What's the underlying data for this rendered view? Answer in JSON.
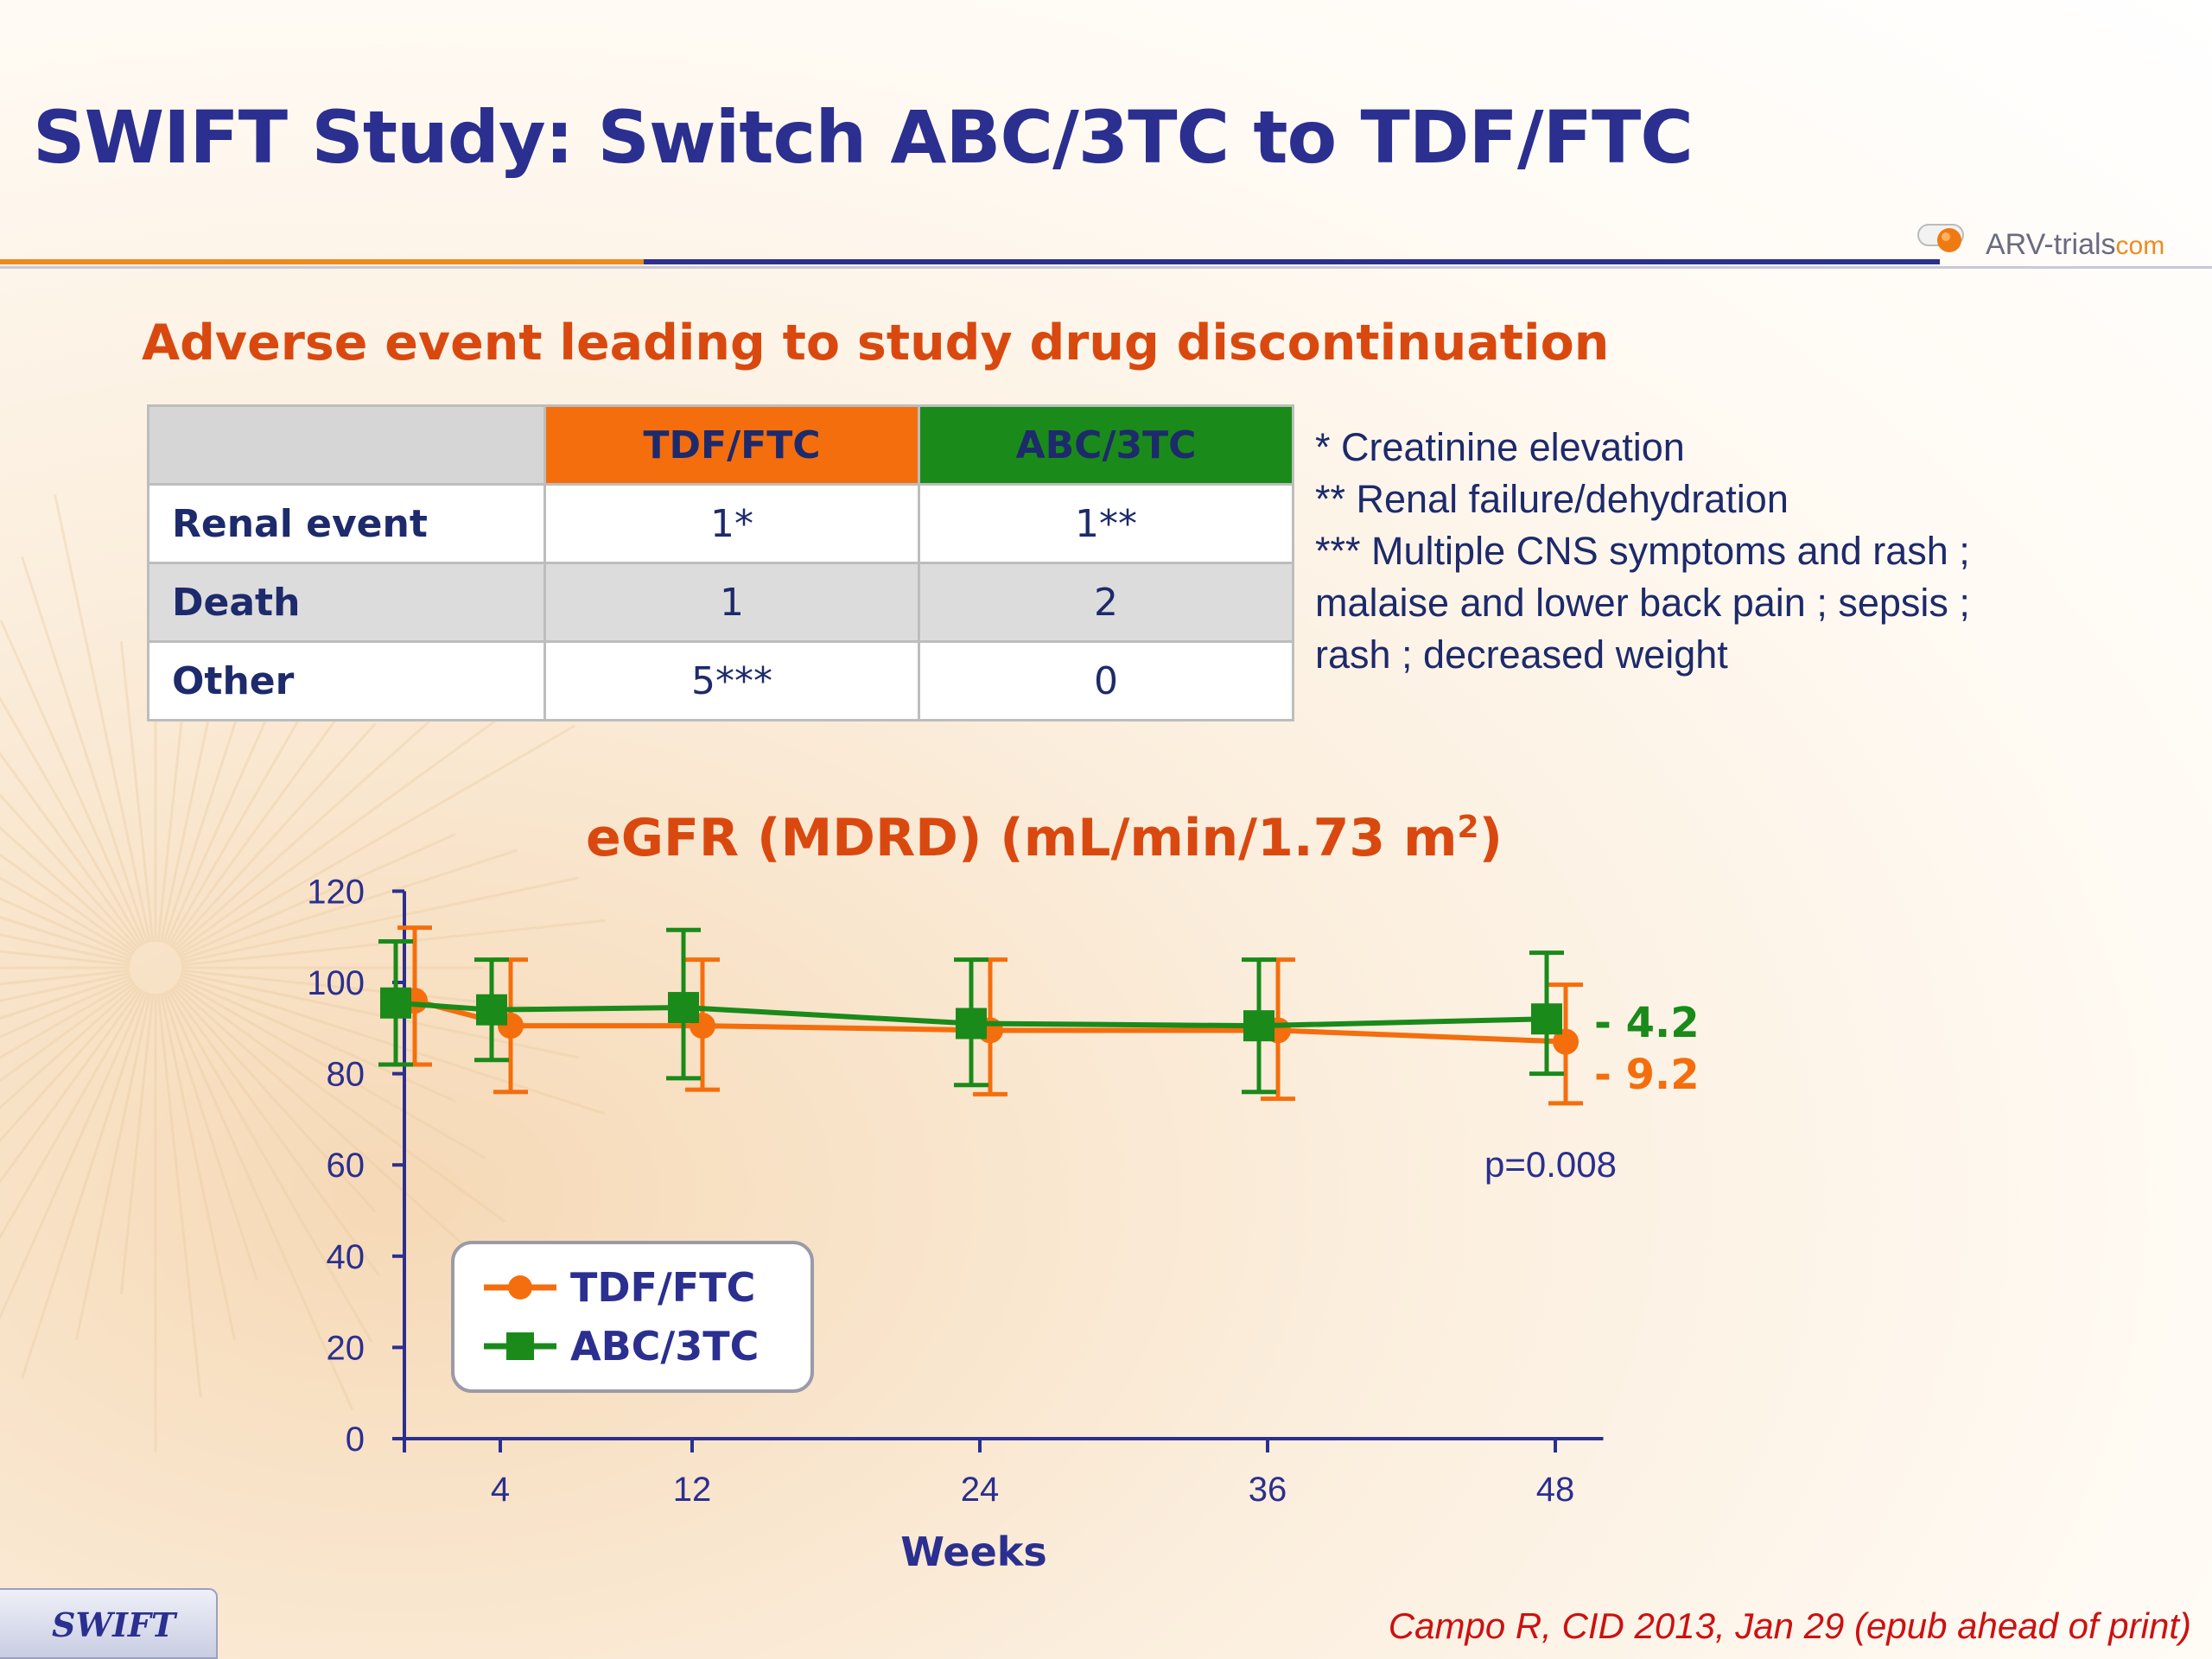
{
  "slide": {
    "title": "SWIFT Study: Switch ABC/3TC to TDF/FTC",
    "logo_main": "ARV-trials",
    "logo_suffix": "com",
    "subtitle": "Adverse event leading to study drug discontinuation",
    "tab_label": "SWIFT",
    "citation": "Campo R, CID 2013, Jan 29 (epub ahead of print)"
  },
  "colors": {
    "title_blue": "#2b2f8f",
    "accent_orange": "#d9490f",
    "tdf_orange": "#f46e0d",
    "abc_green": "#1a8a1a",
    "citation_red": "#cc1111"
  },
  "table": {
    "headers": [
      "",
      "TDF/FTC",
      "ABC/3TC"
    ],
    "rows": [
      {
        "label": "Renal event",
        "tdf": "1*",
        "abc": "1**"
      },
      {
        "label": "Death",
        "tdf": "1",
        "abc": "2"
      },
      {
        "label": "Other",
        "tdf": "5***",
        "abc": "0"
      }
    ]
  },
  "footnotes": [
    "* Creatinine elevation",
    "** Renal failure/dehydration",
    "*** Multiple CNS symptoms and rash ;",
    "malaise and lower back pain ; sepsis ;",
    "rash ; decreased weight"
  ],
  "chart_data": {
    "type": "line",
    "title": "eGFR (MDRD) (mL/min/1.73 m",
    "title_sup": "2",
    "title_close": ")",
    "xlabel": "Weeks",
    "ylabel": "",
    "x": [
      0,
      4,
      12,
      24,
      36,
      48
    ],
    "x_ticks": [
      "4",
      "12",
      "24",
      "36",
      "48"
    ],
    "y_ticks": [
      "0",
      "20",
      "40",
      "60",
      "80",
      "100",
      "120"
    ],
    "xlim": [
      0,
      50
    ],
    "ylim": [
      0,
      120
    ],
    "series": [
      {
        "name": "TDF/FTC",
        "marker": "circle",
        "color": "#f46e0d",
        "values": [
          96,
          90.5,
          90.5,
          89.5,
          89.5,
          87
        ],
        "err_low": [
          82,
          76,
          76.5,
          75.5,
          74.5,
          73.5
        ],
        "err_high": [
          112,
          105,
          105,
          105,
          105,
          99.5
        ],
        "end_label": "- 9.2"
      },
      {
        "name": "ABC/3TC",
        "marker": "square",
        "color": "#1a8a1a",
        "values": [
          95.5,
          94,
          94.5,
          91,
          90.5,
          92
        ],
        "err_low": [
          82,
          83,
          79,
          77.5,
          76,
          80
        ],
        "err_high": [
          109,
          105,
          111.5,
          105,
          105,
          106.5
        ],
        "end_label": "- 4.2"
      }
    ],
    "annotation": "p=0.008",
    "legend_position": "bottom-left"
  }
}
